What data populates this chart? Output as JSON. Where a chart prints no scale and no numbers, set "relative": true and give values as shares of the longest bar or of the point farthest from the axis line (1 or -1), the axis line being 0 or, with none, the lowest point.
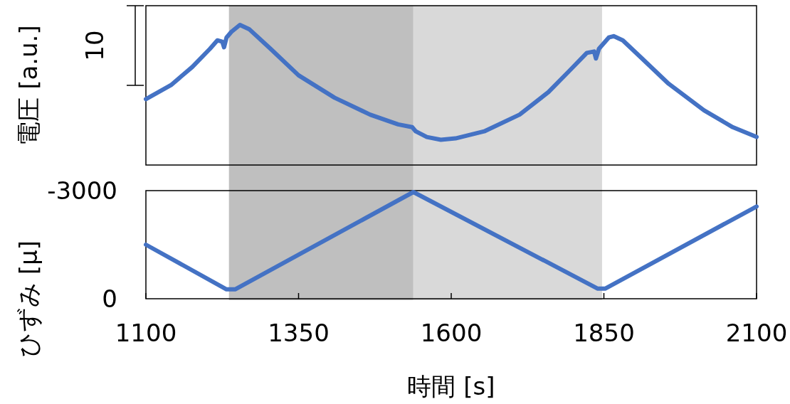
{
  "chart_data": [
    {
      "type": "line",
      "relative": true,
      "ylabel": "電圧 [a.u.]",
      "annotations": [
        "10"
      ],
      "xlim": [
        1100,
        2100
      ],
      "bands": [
        {
          "axis": "x",
          "from": 1236,
          "to": 1538,
          "color": "#bfbfbf"
        },
        {
          "axis": "x",
          "from": 1538,
          "to": 1847,
          "color": "#d9d9d9"
        }
      ],
      "series": [
        {
          "color": "#4472c4",
          "x": [
            1100,
            1141,
            1176,
            1205,
            1217,
            1225,
            1228,
            1232,
            1240,
            1254,
            1269,
            1304,
            1350,
            1409,
            1467,
            1513,
            1536,
            1542,
            1560,
            1583,
            1607,
            1654,
            1712,
            1759,
            1793,
            1822,
            1834,
            1837,
            1842,
            1858,
            1866,
            1881,
            1910,
            1956,
            2014,
            2061,
            2100
          ],
          "values": [
            0.47,
            0.57,
            0.7,
            0.83,
            0.89,
            0.88,
            0.84,
            0.91,
            0.95,
            1,
            0.97,
            0.83,
            0.64,
            0.48,
            0.36,
            0.29,
            0.27,
            0.24,
            0.2,
            0.18,
            0.19,
            0.24,
            0.36,
            0.52,
            0.67,
            0.8,
            0.81,
            0.76,
            0.83,
            0.91,
            0.92,
            0.89,
            0.77,
            0.58,
            0.39,
            0.27,
            0.2
          ]
        }
      ]
    },
    {
      "type": "line",
      "ylabel": "ひずみ [μ]",
      "xlabel": "時間 [s]",
      "xlim": [
        1100,
        2100
      ],
      "xticks": [
        1100,
        1350,
        1600,
        1850,
        2100
      ],
      "ylim": [
        0,
        -3000
      ],
      "yticks": [
        -3000,
        0
      ],
      "bands": [
        {
          "axis": "x",
          "from": 1236,
          "to": 1538,
          "color": "#bfbfbf"
        },
        {
          "axis": "x",
          "from": 1538,
          "to": 1847,
          "color": "#d9d9d9"
        }
      ],
      "series": [
        {
          "color": "#4472c4",
          "x": [
            1100,
            1232,
            1246,
            1538,
            1840,
            1852,
            2100
          ],
          "values": [
            -1500,
            -260,
            -260,
            -2960,
            -280,
            -280,
            -2560
          ]
        }
      ]
    }
  ]
}
